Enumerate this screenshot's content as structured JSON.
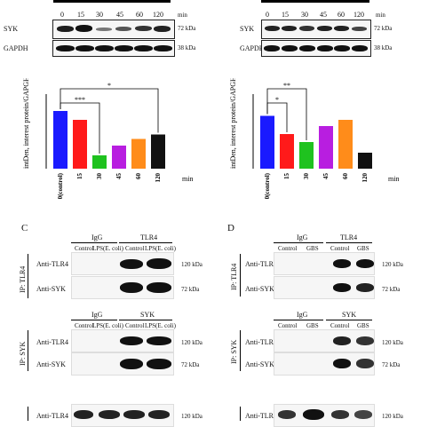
{
  "top_left": {
    "timepoints": [
      "0",
      "15",
      "30",
      "45",
      "60",
      "120"
    ],
    "unit": "min",
    "rows": [
      {
        "protein": "SYK",
        "size": "72 kDa"
      },
      {
        "protein": "GAPDH",
        "size": "38 kDa"
      }
    ]
  },
  "top_right": {
    "timepoints": [
      "0",
      "15",
      "30",
      "45",
      "60",
      "120"
    ],
    "unit": "min",
    "rows": [
      {
        "protein": "SYK",
        "size": "72 kDa"
      },
      {
        "protein": "GAPDH",
        "size": "38 kDa"
      }
    ]
  },
  "chart_data": [
    {
      "type": "bar",
      "ylabel": "intDen, interest protein/GAPGH",
      "xunit": "min",
      "categories": [
        "0(control)",
        "15",
        "30",
        "45",
        "60",
        "120"
      ],
      "values": [
        1.3,
        1.1,
        0.3,
        0.52,
        0.67,
        0.77
      ],
      "colors": [
        "#1a1aff",
        "#ff1a1a",
        "#1fc21f",
        "#b81ee0",
        "#ff8c1a",
        "#111111"
      ],
      "ylim": [
        0,
        1.6
      ],
      "significance": [
        {
          "from": "0(control)",
          "to": "30",
          "label": "***"
        },
        {
          "from": "0(control)",
          "to": "120",
          "label": "*"
        }
      ]
    },
    {
      "type": "bar",
      "ylabel": "intDen, interest protein/GAPGH",
      "xunit": "min",
      "categories": [
        "0(control)",
        "15",
        "30",
        "45",
        "60",
        "120"
      ],
      "values": [
        1.19,
        0.78,
        0.6,
        0.96,
        1.1,
        0.36
      ],
      "colors": [
        "#1a1aff",
        "#ff1a1a",
        "#1fc21f",
        "#b81ee0",
        "#ff8c1a",
        "#111111"
      ],
      "ylim": [
        0,
        1.6
      ],
      "significance": [
        {
          "from": "0(control)",
          "to": "15",
          "label": "*"
        },
        {
          "from": "0(control)",
          "to": "30",
          "label": "**"
        }
      ]
    }
  ],
  "panel_c": {
    "letter": "C",
    "ip_tlr4": {
      "ip_label": "IP: TLR4",
      "groups": [
        "IgG",
        "TLR4"
      ],
      "conditions": [
        "Control",
        "LPS(E. coli)",
        "Control",
        "LPS(E. coli)"
      ],
      "rows": [
        {
          "protein": "Anti-TLR4",
          "size": "120 kDa"
        },
        {
          "protein": "Anti-SYK",
          "size": "72 kDa"
        }
      ]
    },
    "ip_syk": {
      "ip_label": "IP: SYK",
      "groups": [
        "IgG",
        "SYK"
      ],
      "conditions": [
        "Control",
        "LPS(E. coli)",
        "Control",
        "LPS(E. coli)"
      ],
      "rows": [
        {
          "protein": "Anti-TLR4",
          "size": "120 kDa"
        },
        {
          "protein": "Anti-SYK",
          "size": "72 kDa"
        }
      ]
    },
    "bottom_row": {
      "protein": "Anti-TLR4",
      "size": "120 kDa"
    }
  },
  "panel_d": {
    "letter": "D",
    "ip_tlr4": {
      "ip_label": "IP: TLR4",
      "groups": [
        "IgG",
        "TLR4"
      ],
      "conditions": [
        "Control",
        "GBS",
        "Control",
        "GBS"
      ],
      "rows": [
        {
          "protein": "Anti-TLR4",
          "size": "120 kDa"
        },
        {
          "protein": "Anti-SYK",
          "size": "72 kDa"
        }
      ]
    },
    "ip_syk": {
      "ip_label": "IP: SYK",
      "groups": [
        "IgG",
        "SYK"
      ],
      "conditions": [
        "Control",
        "GBS",
        "Control",
        "GBS"
      ],
      "rows": [
        {
          "protein": "Anti-TLR4",
          "size": "120 kDa"
        },
        {
          "protein": "Anti-SYK",
          "size": "72 kDa"
        }
      ]
    },
    "bottom_row": {
      "protein": "Anti-TLR4",
      "size": "120 kDa"
    }
  }
}
